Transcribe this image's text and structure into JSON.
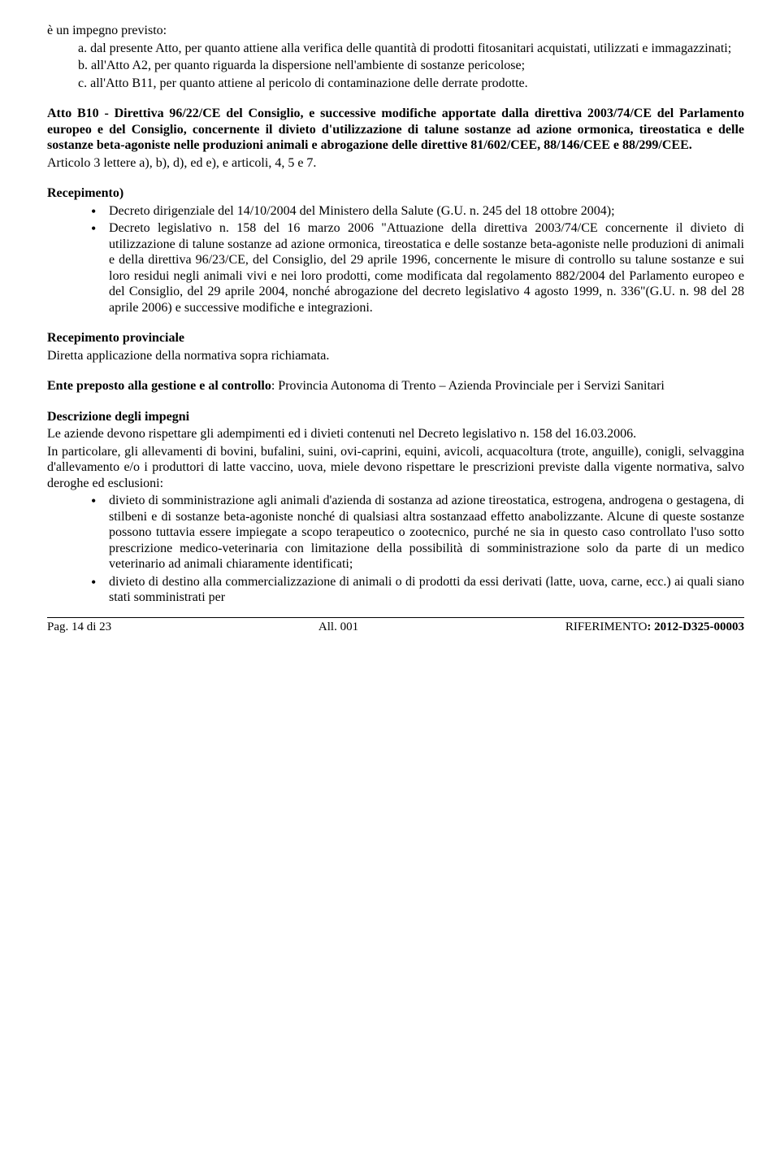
{
  "intro": {
    "line1": "è un impegno previsto:",
    "a": "a. dal presente Atto, per quanto attiene alla verifica delle quantità di prodotti fitosanitari acquistati, utilizzati e immagazzinati;",
    "b": "b. all'Atto A2, per quanto riguarda la dispersione nell'ambiente di sostanze pericolose;",
    "c": "c. all'Atto B11, per quanto attiene al pericolo di contaminazione delle derrate prodotte."
  },
  "atto": {
    "title": "Atto B10 - Direttiva 96/22/CE del Consiglio, e successive modifiche apportate dalla direttiva 2003/74/CE del Parlamento europeo e del Consiglio, concernente il divieto d'utilizzazione di talune sostanze ad azione ormonica, tireostatica e delle sostanze beta-agoniste nelle produzioni animali e abrogazione delle direttive 81/602/CEE, 88/146/CEE e 88/299/CEE.",
    "sub": "Articolo 3 lettere a), b), d), ed e), e articoli, 4, 5 e 7."
  },
  "recepimento": {
    "heading": "Recepimento)",
    "b1": "Decreto dirigenziale del 14/10/2004 del Ministero della Salute (G.U. n. 245 del 18 ottobre 2004);",
    "b2": "Decreto legislativo n. 158 del 16 marzo 2006 \"Attuazione della direttiva 2003/74/CE concernente il divieto di utilizzazione di talune sostanze ad azione ormonica, tireostatica e delle sostanze beta-agoniste nelle produzioni di animali e della direttiva 96/23/CE, del Consiglio, del 29 aprile 1996, concernente le misure di controllo su talune sostanze e sui loro residui negli animali vivi e nei loro prodotti, come modificata dal regolamento 882/2004 del Parlamento europeo e del Consiglio, del 29 aprile 2004, nonché abrogazione del decreto legislativo 4 agosto 1999, n. 336\"(G.U. n. 98 del 28 aprile 2006) e successive modifiche e integrazioni."
  },
  "prov": {
    "heading": "Recepimento provinciale",
    "text": "Diretta applicazione della normativa sopra richiamata."
  },
  "ente": {
    "label": "Ente preposto alla gestione e al controllo",
    "text": ": Provincia Autonoma di Trento – Azienda Provinciale per i Servizi Sanitari"
  },
  "descr": {
    "heading": "Descrizione degli impegni",
    "p1": "Le aziende devono rispettare gli adempimenti ed i divieti contenuti nel Decreto legislativo n. 158 del 16.03.2006.",
    "p2": "In particolare, gli allevamenti di bovini, bufalini, suini, ovi-caprini, equini, avicoli, acquacoltura (trote, anguille), conigli, selvaggina d'allevamento e/o i produttori di latte vaccino, uova, miele devono rispettare le prescrizioni previste dalla vigente normativa, salvo deroghe ed esclusioni:",
    "b1": "divieto di somministrazione agli animali d'azienda di sostanza ad azione tireostatica, estrogena, androgena o gestagena, di stilbeni e di sostanze beta-agoniste nonché di qualsiasi altra sostanzaad effetto anabolizzante. Alcune di queste sostanze possono tuttavia essere impiegate a scopo terapeutico o zootecnico, purché ne sia in questo caso controllato l'uso sotto prescrizione medico-veterinaria con limitazione della possibilità di somministrazione solo da parte di un medico veterinario ad animali chiaramente identificati;",
    "b2": "divieto di destino alla commercializzazione di animali o di prodotti da essi derivati (latte, uova, carne, ecc.) ai quali siano stati somministrati per"
  },
  "footer": {
    "left": "Pag. 14 di 23",
    "center": "All. 001",
    "right_label": "RIFERIMENTO",
    "right_value": ": 2012-D325-00003"
  }
}
